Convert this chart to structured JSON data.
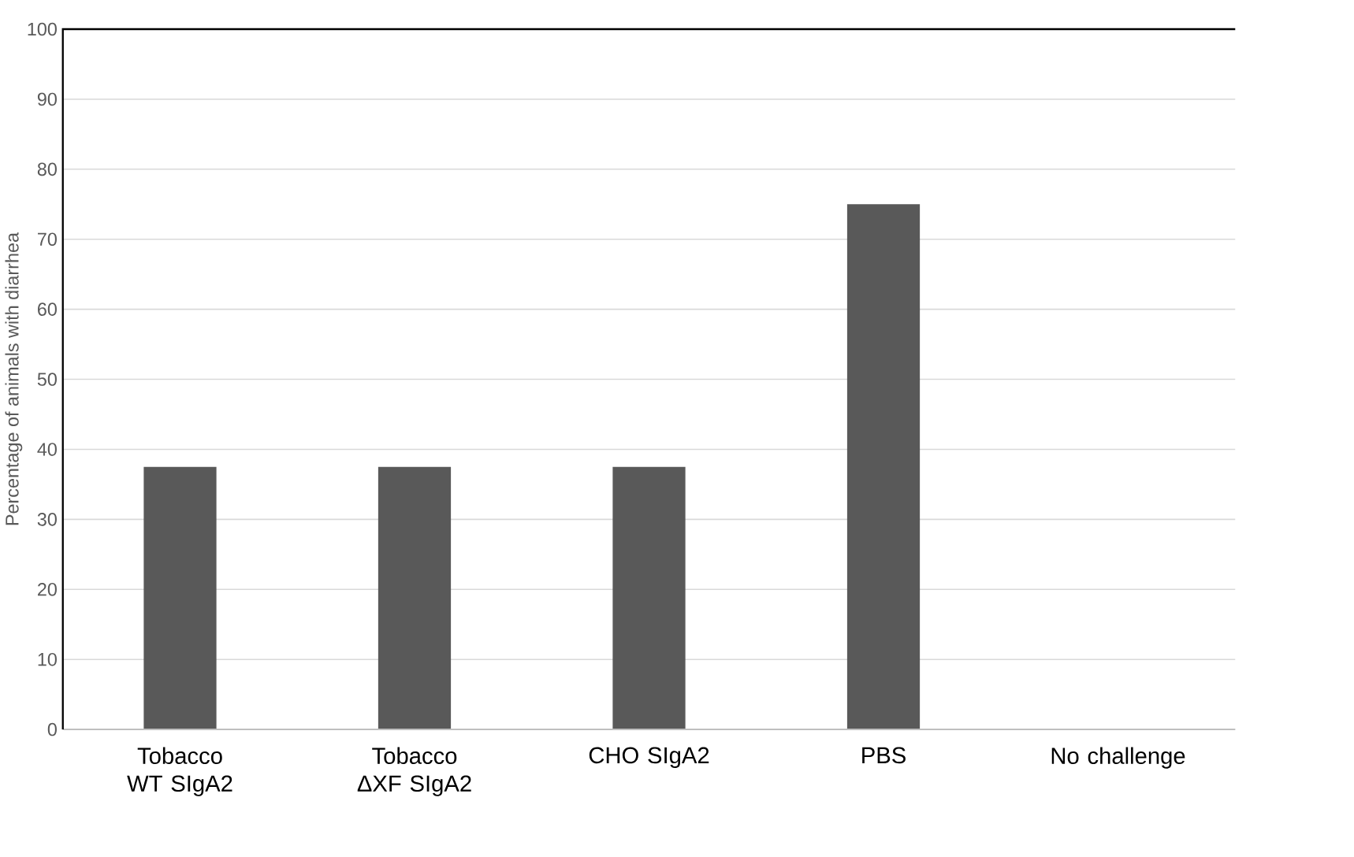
{
  "chart_data": {
    "type": "bar",
    "ylabel": "Percentage of animals with diarrhea",
    "categories": [
      "Tobacco WT SIgA2",
      "Tobacco ΔXF SIgA2",
      "CHO SIgA2",
      "PBS",
      "No challenge"
    ],
    "values": [
      37.5,
      37.5,
      37.5,
      75,
      0
    ],
    "color": "#595959",
    "ylim": [
      0,
      100
    ],
    "yticks": [
      0,
      10,
      20,
      30,
      40,
      50,
      60,
      70,
      80,
      90,
      100
    ],
    "grid": "y"
  }
}
